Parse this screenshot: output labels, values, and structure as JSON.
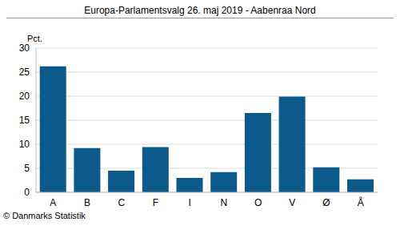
{
  "chart_data": {
    "type": "bar",
    "title": "Europa-Parlamentsvalg 26. maj 2019 - Aabenraa Nord",
    "ylabel": "Pct.",
    "annotations": [
      "© Danmarks Statistik"
    ],
    "categories": [
      "A",
      "B",
      "C",
      "F",
      "I",
      "N",
      "O",
      "V",
      "Ø",
      "Å"
    ],
    "values": [
      26.2,
      9.2,
      4.5,
      9.4,
      3.0,
      4.2,
      16.5,
      19.9,
      5.2,
      2.7
    ],
    "color": "#0b5a8a",
    "ylim": [
      0,
      30
    ],
    "yticks": [
      0,
      5,
      10,
      15,
      20,
      25,
      30
    ],
    "grid": true
  }
}
